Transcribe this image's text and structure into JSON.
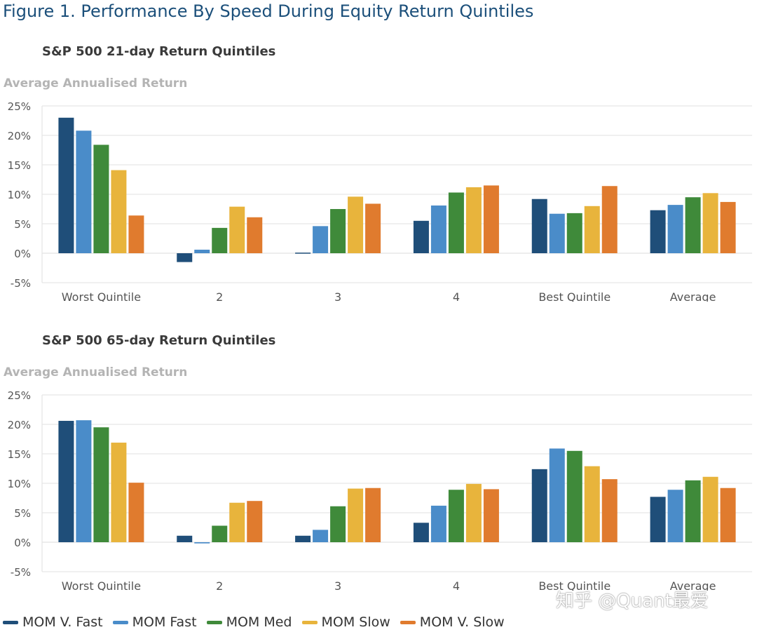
{
  "figure_title": "Figure 1. Performance By Speed During Equity Return Quintiles",
  "watermark": "知乎 @Quant最爱",
  "legend": [
    {
      "name": "MOM V. Fast",
      "color": "#1f4e79"
    },
    {
      "name": "MOM Fast",
      "color": "#4a8cc9"
    },
    {
      "name": "MOM Med",
      "color": "#3f8a3a"
    },
    {
      "name": "MOM Slow",
      "color": "#e8b43c"
    },
    {
      "name": "MOM V. Slow",
      "color": "#e07b2e"
    }
  ],
  "chart_data": [
    {
      "type": "bar",
      "title": "S&P 500 21-day Return Quintiles",
      "ylabel": "Average Annualised Return",
      "xlabel": "",
      "categories": [
        "Worst Quintile",
        "2",
        "3",
        "4",
        "Best Quintile",
        "Average"
      ],
      "y_ticks": [
        "25%",
        "20%",
        "15%",
        "10%",
        "5%",
        "0%",
        "-5%"
      ],
      "ylim": [
        -5,
        25
      ],
      "grid": true,
      "legend_position": "bottom",
      "series": [
        {
          "name": "MOM V. Fast",
          "color": "#1f4e79",
          "values": [
            23.0,
            -1.5,
            0.1,
            5.5,
            9.2,
            7.3
          ]
        },
        {
          "name": "MOM Fast",
          "color": "#4a8cc9",
          "values": [
            20.8,
            0.6,
            4.6,
            8.1,
            6.7,
            8.2
          ]
        },
        {
          "name": "MOM Med",
          "color": "#3f8a3a",
          "values": [
            18.4,
            4.3,
            7.5,
            10.3,
            6.8,
            9.5
          ]
        },
        {
          "name": "MOM Slow",
          "color": "#e8b43c",
          "values": [
            14.1,
            7.9,
            9.6,
            11.2,
            8.0,
            10.2
          ]
        },
        {
          "name": "MOM V. Slow",
          "color": "#e07b2e",
          "values": [
            6.4,
            6.1,
            8.4,
            11.5,
            11.4,
            8.7
          ]
        }
      ]
    },
    {
      "type": "bar",
      "title": "S&P 500 65-day Return Quintiles",
      "ylabel": "Average Annualised Return",
      "xlabel": "",
      "categories": [
        "Worst Quintile",
        "2",
        "3",
        "4",
        "Best Quintile",
        "Average"
      ],
      "y_ticks": [
        "25%",
        "20%",
        "15%",
        "10%",
        "5%",
        "0%",
        "-5%"
      ],
      "ylim": [
        -5,
        25
      ],
      "grid": true,
      "legend_position": "bottom",
      "series": [
        {
          "name": "MOM V. Fast",
          "color": "#1f4e79",
          "values": [
            20.6,
            1.1,
            1.1,
            3.3,
            12.4,
            7.7
          ]
        },
        {
          "name": "MOM Fast",
          "color": "#4a8cc9",
          "values": [
            20.7,
            -0.2,
            2.1,
            6.2,
            15.9,
            8.9
          ]
        },
        {
          "name": "MOM Med",
          "color": "#3f8a3a",
          "values": [
            19.5,
            2.8,
            6.1,
            8.9,
            15.5,
            10.5
          ]
        },
        {
          "name": "MOM Slow",
          "color": "#e8b43c",
          "values": [
            16.9,
            6.7,
            9.1,
            9.9,
            12.9,
            11.1
          ]
        },
        {
          "name": "MOM V. Slow",
          "color": "#e07b2e",
          "values": [
            10.1,
            7.0,
            9.2,
            9.0,
            10.7,
            9.2
          ]
        }
      ]
    }
  ]
}
